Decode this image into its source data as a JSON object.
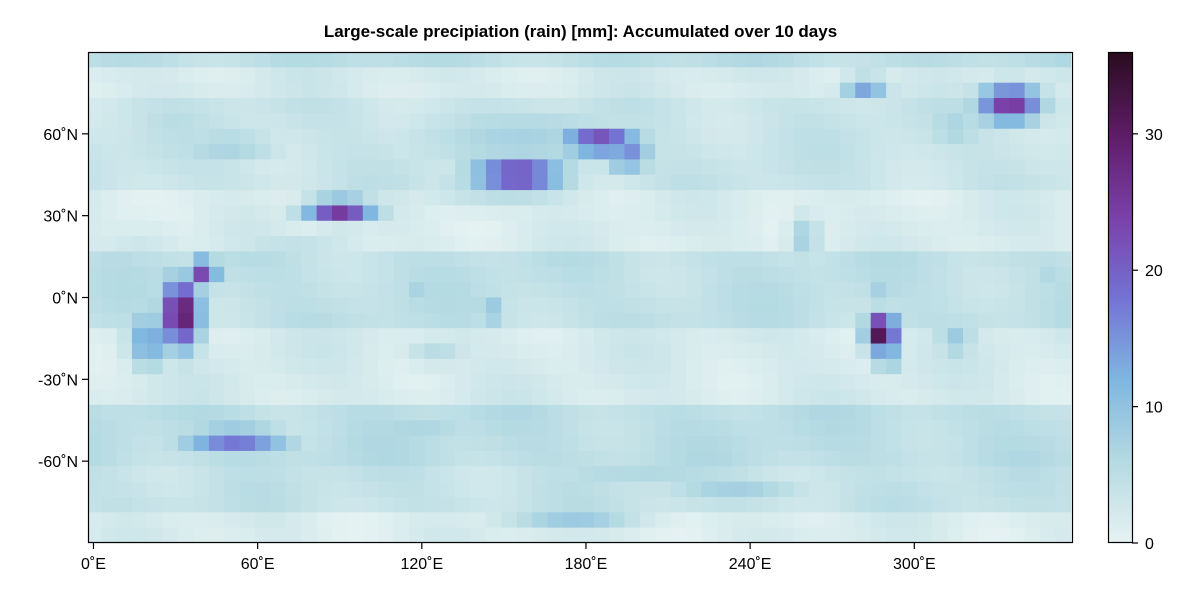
{
  "chart_data": {
    "type": "heatmap",
    "title": "Large-scale precipiation (rain) [mm]: Accumulated over 10 days",
    "xlabel": "",
    "ylabel": "",
    "x_ticks": [
      {
        "value": 0,
        "label": "0˚E"
      },
      {
        "value": 60,
        "label": "60˚E"
      },
      {
        "value": 120,
        "label": "120˚E"
      },
      {
        "value": 180,
        "label": "180˚E"
      },
      {
        "value": 240,
        "label": "240˚E"
      },
      {
        "value": 300,
        "label": "300˚E"
      }
    ],
    "y_ticks": [
      {
        "value": 60,
        "label": "60˚N"
      },
      {
        "value": 30,
        "label": "30˚N"
      },
      {
        "value": 0,
        "label": "0˚N"
      },
      {
        "value": -30,
        "label": "-30˚N"
      },
      {
        "value": -60,
        "label": "-60˚N"
      }
    ],
    "xlim": [
      -2,
      358
    ],
    "ylim": [
      -90,
      90
    ],
    "grid": {
      "nx": 64,
      "ny": 32,
      "dlon": 5.625,
      "dlat": 5.625
    },
    "colorbar": {
      "range": [
        0,
        36
      ],
      "ticks": [
        {
          "value": 0,
          "label": "0"
        },
        {
          "value": 10,
          "label": "10"
        },
        {
          "value": 20,
          "label": "20"
        },
        {
          "value": 30,
          "label": "30"
        }
      ],
      "colors": [
        "#e6f2f2",
        "#b4dae2",
        "#7fb6e0",
        "#7472d4",
        "#7a40a8",
        "#5e1c66",
        "#2a0c1f"
      ]
    },
    "background_pattern": [
      {
        "lat_min": 84,
        "lat_max": 90,
        "value": 5
      },
      {
        "lat_min": 74,
        "lat_max": 84,
        "value": 2
      },
      {
        "lat_min": 40,
        "lat_max": 74,
        "value": 3.5
      },
      {
        "lat_min": 16,
        "lat_max": 40,
        "value": 1.5
      },
      {
        "lat_min": -12,
        "lat_max": 16,
        "value": 4.5
      },
      {
        "lat_min": -40,
        "lat_max": -12,
        "value": 2
      },
      {
        "lat_min": -62,
        "lat_max": -40,
        "value": 5
      },
      {
        "lat_min": -76,
        "lat_max": -62,
        "value": 4
      },
      {
        "lat_min": -90,
        "lat_max": -76,
        "value": 1.5
      }
    ],
    "features": [
      {
        "lon": 32,
        "lat": -6,
        "slon": 5,
        "slat": 9,
        "value": 30
      },
      {
        "lon": 40,
        "lat": 9,
        "slon": 4,
        "slat": 4,
        "value": 22
      },
      {
        "lon": 20,
        "lat": -16,
        "slon": 5,
        "slat": 7,
        "value": 14
      },
      {
        "lon": 18,
        "lat": 8,
        "slon": 12,
        "slat": 12,
        "value": 4
      },
      {
        "lon": 90,
        "lat": 32,
        "slon": 9,
        "slat": 3,
        "value": 26
      },
      {
        "lon": 155,
        "lat": 45,
        "slon": 12,
        "slat": 4,
        "value": 24
      },
      {
        "lon": 185,
        "lat": 57,
        "slon": 10,
        "slat": 3,
        "value": 26
      },
      {
        "lon": 195,
        "lat": 52,
        "slon": 6,
        "slat": 4,
        "value": 16
      },
      {
        "lon": 160,
        "lat": 58,
        "slon": 35,
        "slat": 9,
        "value": 6
      },
      {
        "lon": 150,
        "lat": 40,
        "slon": 20,
        "slat": 5,
        "value": 6
      },
      {
        "lon": 288,
        "lat": -13,
        "slon": 4,
        "slat": 5,
        "value": 33
      },
      {
        "lon": 290,
        "lat": -20,
        "slon": 3,
        "slat": 5,
        "value": 16
      },
      {
        "lon": 288,
        "lat": 5,
        "slon": 5,
        "slat": 3,
        "value": 8
      },
      {
        "lon": 315,
        "lat": -15,
        "slon": 5,
        "slat": 5,
        "value": 8
      },
      {
        "lon": 335,
        "lat": 71,
        "slon": 8,
        "slat": 5,
        "value": 25
      },
      {
        "lon": 282,
        "lat": 77,
        "slon": 6,
        "slat": 3,
        "value": 14
      },
      {
        "lon": 315,
        "lat": 62,
        "slon": 8,
        "slat": 3,
        "value": 8
      },
      {
        "lon": 52,
        "lat": -52,
        "slon": 14,
        "slat": 3,
        "value": 18
      },
      {
        "lon": 120,
        "lat": -48,
        "slon": 18,
        "slat": 4,
        "value": 5
      },
      {
        "lon": 235,
        "lat": -72,
        "slon": 20,
        "slat": 2,
        "value": 9
      },
      {
        "lon": 175,
        "lat": -82,
        "slon": 18,
        "slat": 3,
        "value": 8
      },
      {
        "lon": 145,
        "lat": -5,
        "slon": 4,
        "slat": 4,
        "value": 9
      },
      {
        "lon": 120,
        "lat": 3,
        "slon": 4,
        "slat": 4,
        "value": 6
      },
      {
        "lon": 125,
        "lat": -20,
        "slon": 8,
        "slat": 4,
        "value": 5
      },
      {
        "lon": 260,
        "lat": 22,
        "slon": 4,
        "slat": 6,
        "value": 8
      },
      {
        "lon": 75,
        "lat": 18,
        "slon": 18,
        "slat": 4,
        "value": 4
      },
      {
        "lon": 50,
        "lat": 55,
        "slon": 14,
        "slat": 5,
        "value": 6
      },
      {
        "lon": 350,
        "lat": 10,
        "slon": 6,
        "slat": 5,
        "value": 5
      },
      {
        "lon": 200,
        "lat": -65,
        "slon": 30,
        "slat": 3,
        "value": 5
      },
      {
        "lon": 30,
        "lat": 66,
        "slon": 15,
        "slat": 5,
        "value": 4
      }
    ]
  }
}
